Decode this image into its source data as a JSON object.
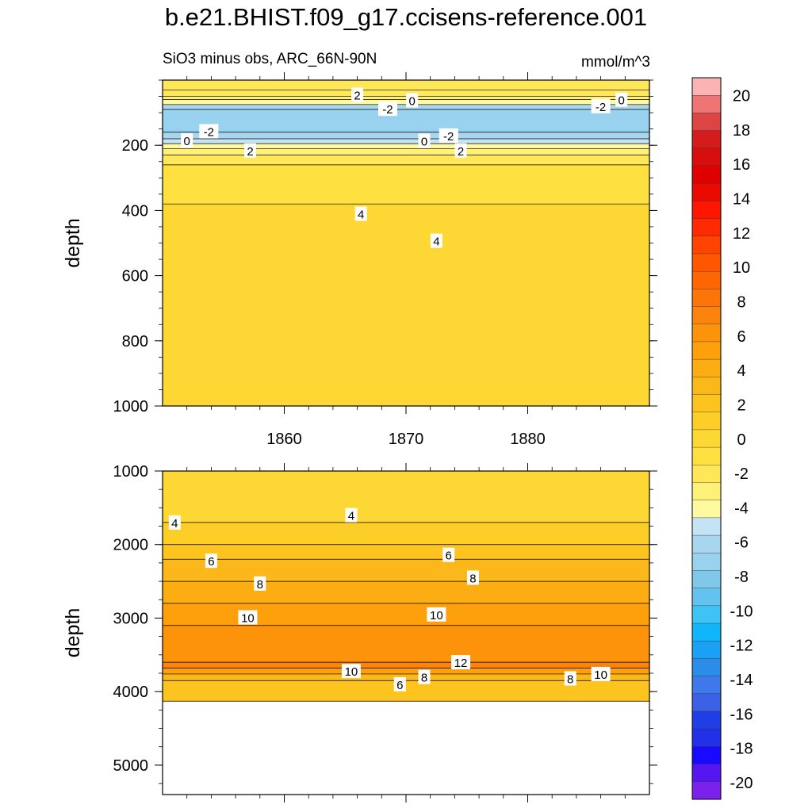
{
  "title": "b.e21.BHIST.f09_g17.ccisens-reference.001",
  "left_subtitle": "SiO3 minus obs, ARC_66N-90N",
  "right_subtitle": "mmol/m^3",
  "colors": {
    "neg": [
      "#7b22ea",
      "#5616f0",
      "#1a09ff",
      "#2230e8",
      "#1f3ee6",
      "#3a61e6",
      "#3f78ea",
      "#2c8de8",
      "#1aa1f5",
      "#10b6fa",
      "#3ec3f5",
      "#64c3ee",
      "#7fc8ea",
      "#98d2ee",
      "#a7d6ee",
      "#c4e3f4"
    ],
    "pos": [
      "#fffaa0",
      "#fff177",
      "#ffe75a",
      "#fee040",
      "#fdd734",
      "#fece28",
      "#fdc420",
      "#fbb81a",
      "#fcad11",
      "#fe9f0c",
      "#fd930b",
      "#fd840c",
      "#fd7509",
      "#fe6603",
      "#ff5700",
      "#ff4300",
      "#ff2a00",
      "#ff1600",
      "#ea0a00",
      "#e10000",
      "#d80d0d",
      "#d51c1c",
      "#dd4545",
      "#ef7474",
      "#fbb3b3"
    ]
  },
  "chart_data": [
    {
      "type": "contour",
      "panel": "top",
      "title": "b.e21.BHIST.f09_g17.ccisens-reference.001",
      "subtitle_left": "SiO3 minus obs, ARC_66N-90N",
      "subtitle_right": "mmol/m^3",
      "ylabel": "depth",
      "xlim": [
        1850,
        1890
      ],
      "ylim": [
        1000,
        0
      ],
      "x_ticks": [
        1860,
        1870,
        1880
      ],
      "y_ticks": [
        200,
        400,
        600,
        800,
        1000
      ],
      "fill_bands": [
        {
          "from": 0,
          "to": 30,
          "value": 2.5
        },
        {
          "from": 30,
          "to": 50,
          "value": 2.5
        },
        {
          "from": 50,
          "to": 60,
          "value": 1.5
        },
        {
          "from": 60,
          "to": 75,
          "value": 0.5
        },
        {
          "from": 75,
          "to": 90,
          "value": -1.5
        },
        {
          "from": 90,
          "to": 160,
          "value": -2.5
        },
        {
          "from": 160,
          "to": 180,
          "value": -1.5
        },
        {
          "from": 180,
          "to": 195,
          "value": -0.5
        },
        {
          "from": 195,
          "to": 210,
          "value": 0.5
        },
        {
          "from": 210,
          "to": 230,
          "value": 1.5
        },
        {
          "from": 230,
          "to": 260,
          "value": 2.5
        },
        {
          "from": 260,
          "to": 380,
          "value": 3.5
        },
        {
          "from": 380,
          "to": 1000,
          "value": 4.5
        }
      ],
      "contour_labels": [
        {
          "text": "2",
          "x": 1866.0,
          "y": 45
        },
        {
          "text": "0",
          "x": 1870.5,
          "y": 62
        },
        {
          "text": "-2",
          "x": 1868.5,
          "y": 88
        },
        {
          "text": "-2",
          "x": 1886.0,
          "y": 80
        },
        {
          "text": "0",
          "x": 1887.7,
          "y": 60
        },
        {
          "text": "-2",
          "x": 1853.8,
          "y": 157
        },
        {
          "text": "0",
          "x": 1852.0,
          "y": 185
        },
        {
          "text": "-2",
          "x": 1873.5,
          "y": 170
        },
        {
          "text": "0",
          "x": 1871.5,
          "y": 186
        },
        {
          "text": "2",
          "x": 1857.2,
          "y": 216
        },
        {
          "text": "2",
          "x": 1874.5,
          "y": 216
        },
        {
          "text": "4",
          "x": 1866.3,
          "y": 410
        },
        {
          "text": "4",
          "x": 1872.5,
          "y": 493
        }
      ]
    },
    {
      "type": "contour",
      "panel": "bottom",
      "ylabel": "depth",
      "xlim": [
        1850,
        1890
      ],
      "ylim": [
        5400,
        1000
      ],
      "y_ticks": [
        1000,
        2000,
        3000,
        4000,
        5000
      ],
      "data_bottom_depth": 4130,
      "fill_bands": [
        {
          "from": 1000,
          "to": 1700,
          "value": 4.5
        },
        {
          "from": 1700,
          "to": 2000,
          "value": 5.5
        },
        {
          "from": 2000,
          "to": 2200,
          "value": 6.5
        },
        {
          "from": 2200,
          "to": 2500,
          "value": 7.5
        },
        {
          "from": 2500,
          "to": 2800,
          "value": 8.5
        },
        {
          "from": 2800,
          "to": 3100,
          "value": 9.5
        },
        {
          "from": 3100,
          "to": 3600,
          "value": 10.5
        },
        {
          "from": 3600,
          "to": 3680,
          "value": 11.5
        },
        {
          "from": 3680,
          "to": 3760,
          "value": 9.5
        },
        {
          "from": 3760,
          "to": 3850,
          "value": 7.5
        },
        {
          "from": 3850,
          "to": 4130,
          "value": 6.5
        }
      ],
      "contour_labels": [
        {
          "text": "4",
          "x": 1851.0,
          "y": 1700
        },
        {
          "text": "4",
          "x": 1865.5,
          "y": 1600
        },
        {
          "text": "6",
          "x": 1854.0,
          "y": 2220
        },
        {
          "text": "6",
          "x": 1873.5,
          "y": 2140
        },
        {
          "text": "8",
          "x": 1858.0,
          "y": 2530
        },
        {
          "text": "8",
          "x": 1875.5,
          "y": 2450
        },
        {
          "text": "10",
          "x": 1857.0,
          "y": 2990
        },
        {
          "text": "10",
          "x": 1872.5,
          "y": 2950
        },
        {
          "text": "12",
          "x": 1874.5,
          "y": 3600
        },
        {
          "text": "10",
          "x": 1865.5,
          "y": 3720
        },
        {
          "text": "8",
          "x": 1871.5,
          "y": 3800
        },
        {
          "text": "6",
          "x": 1869.5,
          "y": 3900
        },
        {
          "text": "8",
          "x": 1883.5,
          "y": 3820
        },
        {
          "text": "10",
          "x": 1886.0,
          "y": 3760
        }
      ]
    },
    {
      "type": "colorbar",
      "labels": [
        "20",
        "18",
        "16",
        "14",
        "12",
        "10",
        "8",
        "6",
        "4",
        "2",
        "0",
        "-2",
        "-4",
        "-6",
        "-8",
        "-10",
        "-12",
        "-14",
        "-16",
        "-18",
        "-20"
      ]
    }
  ]
}
